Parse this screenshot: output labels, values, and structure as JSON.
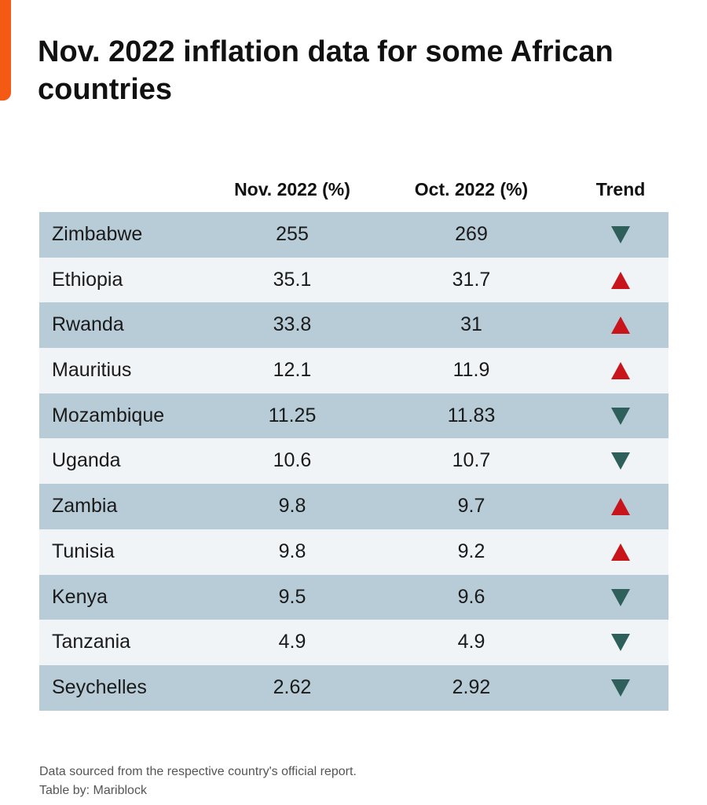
{
  "header": {
    "title": "Nov. 2022 inflation data for some African countries"
  },
  "table": {
    "columns": [
      "Nov. 2022 (%)",
      "Oct. 2022 (%)",
      "Trend"
    ],
    "rows": [
      [
        "Zimbabwe",
        255,
        269
      ],
      [
        "Ethiopia",
        35.1,
        31.7
      ],
      [
        "Rwanda",
        33.8,
        31
      ],
      [
        "Mauritius",
        12.1,
        11.9
      ],
      [
        "Mozambique",
        11.25,
        11.83
      ],
      [
        "Uganda",
        10.6,
        10.7
      ],
      [
        "Zambia",
        9.8,
        9.7
      ],
      [
        "Tunisia",
        9.8,
        9.2
      ],
      [
        "Kenya",
        9.5,
        9.6
      ],
      [
        "Tanzania",
        4.9,
        4.9
      ],
      [
        "Seychelles",
        2.62,
        2.92
      ]
    ]
  },
  "footer": {
    "source": "Data sourced from the respective country's official report.",
    "credit": "Table by: Mariblock"
  }
}
